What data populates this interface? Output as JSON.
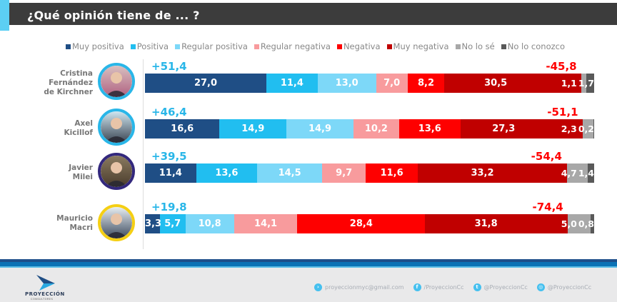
{
  "header": {
    "title": "¿Qué opinión tiene de ... ?"
  },
  "colors": {
    "accent": "#5ccff3",
    "title_bg": "#3c3c3c",
    "muy_positiva": "#1f4e85",
    "positiva": "#21bef0",
    "regular_positiva": "#7dd8f8",
    "regular_negativa": "#f89b9d",
    "negativa": "#fe0000",
    "muy_negativa": "#c00000",
    "no_lo_se": "#a8a8a8",
    "no_lo_conozco": "#595959",
    "positive_total": "#29b6e8",
    "negative_total": "#ff0000"
  },
  "chart_data": {
    "type": "bar",
    "orientation": "horizontal-stacked-100",
    "title": "¿Qué opinión tiene de ... ?",
    "legend_position": "top",
    "xlabel": "",
    "ylabel": "",
    "xlim": [
      0,
      100
    ],
    "grid": false,
    "series_names": [
      "Muy positiva",
      "Positiva",
      "Regular positiva",
      "Regular negativa",
      "Negativa",
      "Muy negativa",
      "No lo sé",
      "No lo conozco"
    ],
    "series_colors": [
      "#1f4e85",
      "#21bef0",
      "#7dd8f8",
      "#f89b9d",
      "#fe0000",
      "#c00000",
      "#a8a8a8",
      "#595959"
    ],
    "categories": [
      {
        "name": "Cristina Fernández de Kirchner",
        "label_lines": [
          "Cristina",
          "Fernández",
          "de Kirchner"
        ],
        "ring_color": "#29b6e8",
        "values": [
          27.0,
          11.4,
          13.0,
          7.0,
          8.2,
          30.5,
          1.1,
          1.7
        ],
        "value_labels": [
          "27,0",
          "11,4",
          "13,0",
          "7,0",
          "8,2",
          "30,5",
          "1,1",
          "1,7"
        ],
        "positive_total": "+51,4",
        "negative_total": "-45,8"
      },
      {
        "name": "Axel Kicillof",
        "label_lines": [
          "Axel",
          "Kicillof"
        ],
        "ring_color": "#29b6e8",
        "values": [
          16.6,
          14.9,
          14.9,
          10.2,
          13.6,
          27.3,
          2.3,
          0.2
        ],
        "value_labels": [
          "16,6",
          "14,9",
          "14,9",
          "10,2",
          "13,6",
          "27,3",
          "2,3",
          "0,2"
        ],
        "positive_total": "+46,4",
        "negative_total": "-51,1"
      },
      {
        "name": "Javier Milei",
        "label_lines": [
          "Javier",
          "Milei"
        ],
        "ring_color": "#33287d",
        "values": [
          11.4,
          13.6,
          14.5,
          9.7,
          11.6,
          33.2,
          4.7,
          1.4
        ],
        "value_labels": [
          "11,4",
          "13,6",
          "14,5",
          "9,7",
          "11,6",
          "33,2",
          "4,7",
          "1,4"
        ],
        "positive_total": "+39,5",
        "negative_total": "-54,4"
      },
      {
        "name": "Mauricio Macri",
        "label_lines": [
          "Mauricio",
          "Macri"
        ],
        "ring_color": "#f5cf14",
        "values": [
          3.3,
          5.7,
          10.8,
          14.1,
          28.4,
          31.8,
          5.0,
          0.8
        ],
        "value_labels": [
          "3,3",
          "5,7",
          "10,8",
          "14,1",
          "28,4",
          "31,8",
          "5,0",
          "0,8"
        ],
        "positive_total": "+19,8",
        "negative_total": "-74,4"
      }
    ]
  },
  "footer": {
    "logo_text": "PROYECCIÓN",
    "logo_subtext": "CONSULTORES",
    "contacts": [
      {
        "icon": "email-icon",
        "glyph": "›",
        "text": "proyeccionmyc@gmail.com"
      },
      {
        "icon": "facebook-icon",
        "glyph": "f",
        "text": "/ProyeccionCc"
      },
      {
        "icon": "twitter-icon",
        "glyph": "t",
        "text": "@ProyeccionCc"
      },
      {
        "icon": "instagram-icon",
        "glyph": "◎",
        "text": "@ProyeccionCc"
      }
    ]
  }
}
